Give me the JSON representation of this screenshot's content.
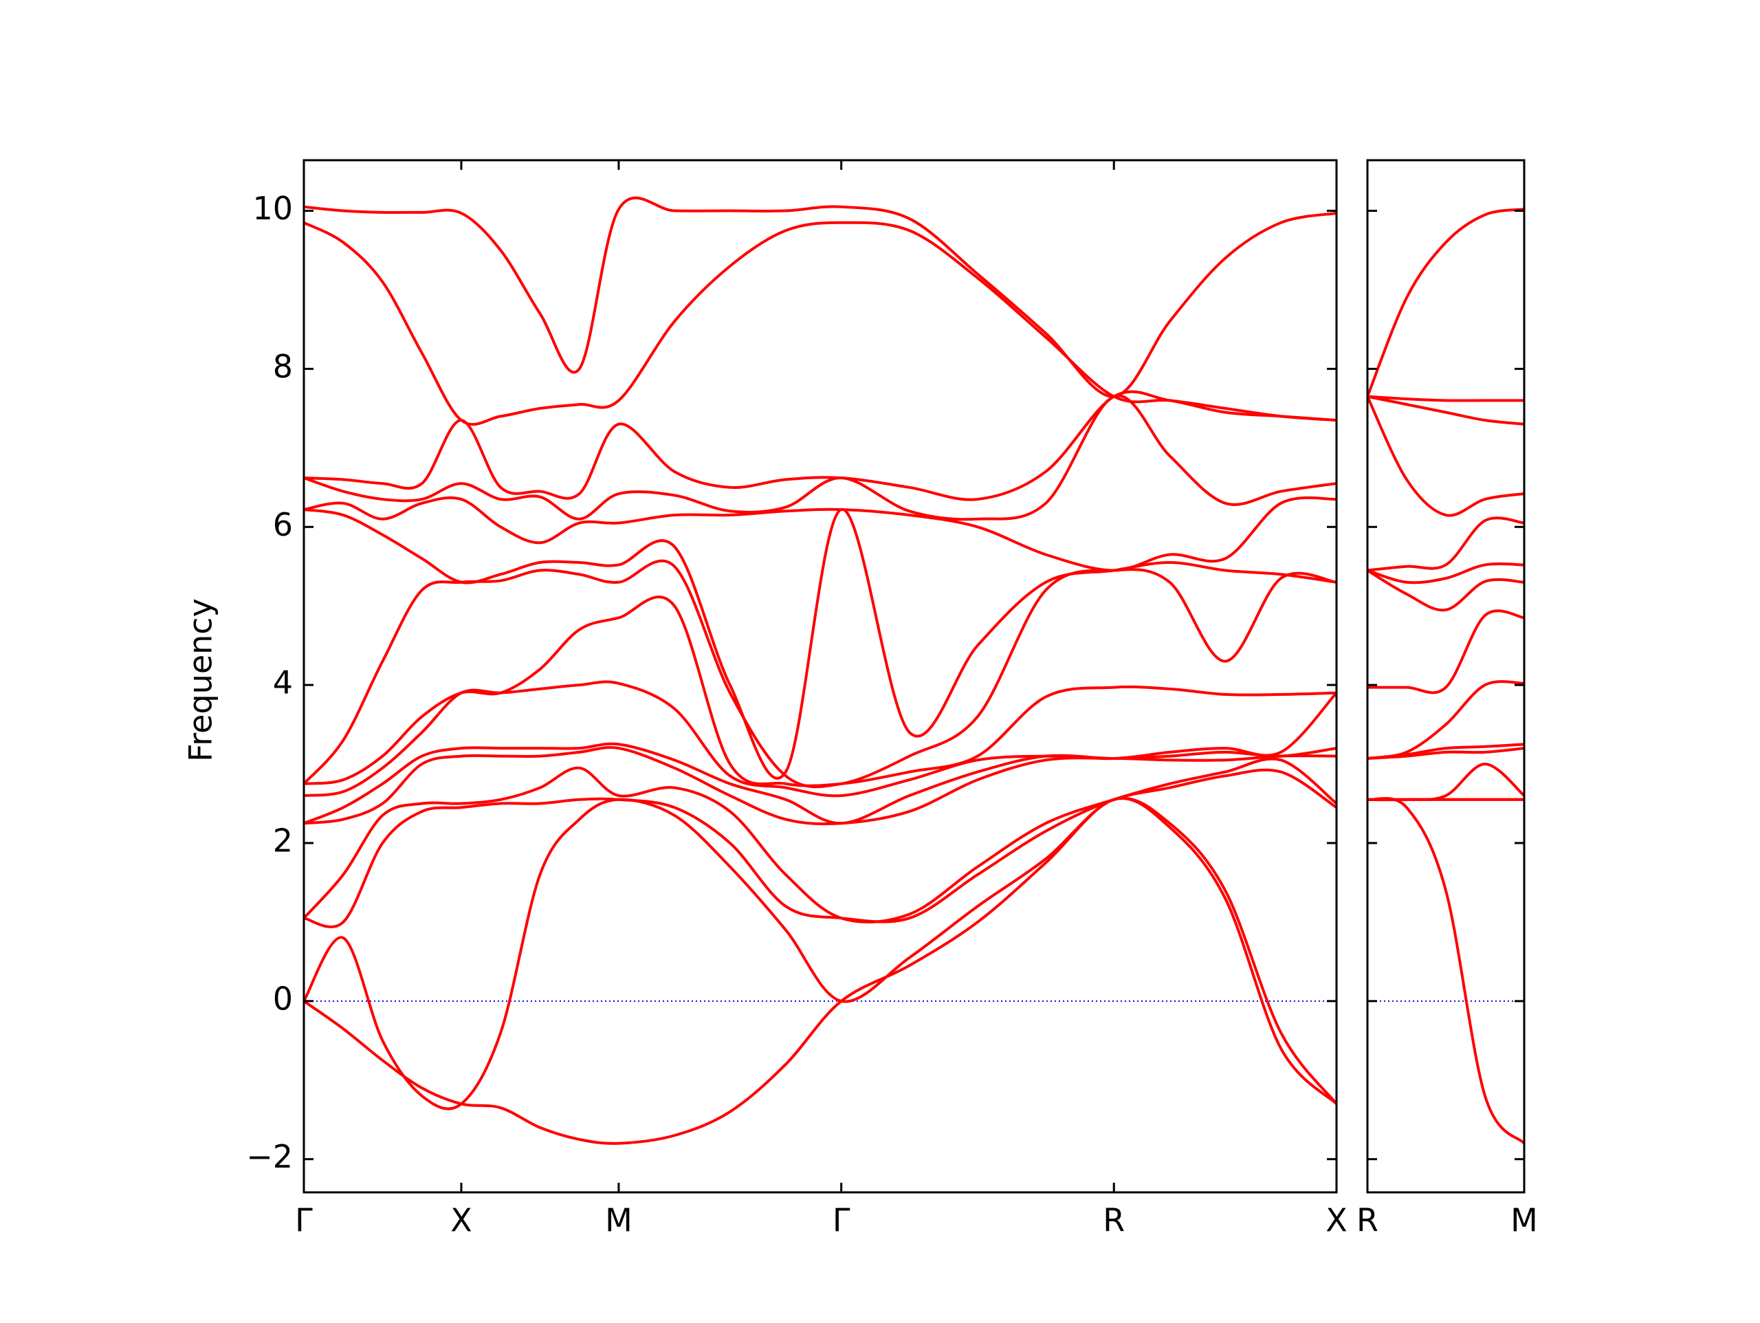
{
  "chart_data": [
    {
      "type": "line",
      "ylabel": "Frequency",
      "x": [
        0,
        0.25,
        0.5,
        0.75,
        1,
        1.25,
        1.5,
        1.75,
        2,
        2.354,
        2.707,
        3.061,
        3.414,
        3.847,
        4.28,
        4.713,
        5.146,
        5.5,
        5.853,
        6.207,
        6.56
      ],
      "xlim": [
        0,
        6.56
      ],
      "xticks": [
        {
          "value": 0,
          "label": "Γ"
        },
        {
          "value": 1,
          "label": "X"
        },
        {
          "value": 2,
          "label": "M"
        },
        {
          "value": 3.414,
          "label": "Γ"
        },
        {
          "value": 5.146,
          "label": "R"
        },
        {
          "value": 6.56,
          "label": "X"
        }
      ],
      "ylim": [
        -2.42,
        10.64
      ],
      "yticks": [
        {
          "value": -2,
          "label": "−2"
        },
        0,
        2,
        4,
        6,
        8,
        10
      ],
      "ytick_labels": true,
      "hline": {
        "value": 0,
        "color": "#0000ff"
      },
      "series": [
        {
          "color": "#ff0000",
          "values": [
            0,
            -0.35,
            -0.75,
            -1.1,
            -1.3,
            -1.35,
            -1.6,
            -1.75,
            -1.8,
            -1.7,
            -1.4,
            -0.8,
            0,
            0.45,
            1.0,
            1.75,
            2.55,
            2.2,
            1.3,
            -0.6,
            -1.3
          ]
        },
        {
          "color": "#ff0000",
          "values": [
            0,
            0.8,
            -0.5,
            -1.2,
            -1.3,
            -0.4,
            1.6,
            2.3,
            2.55,
            2.35,
            1.7,
            0.9,
            0,
            0.55,
            1.2,
            1.8,
            2.55,
            2.25,
            1.4,
            -0.4,
            -1.3
          ]
        },
        {
          "color": "#ff0000",
          "values": [
            1.05,
            1.0,
            2.0,
            2.4,
            2.45,
            2.5,
            2.5,
            2.55,
            2.55,
            2.45,
            2.0,
            1.2,
            1.05,
            1.05,
            1.6,
            2.15,
            2.55,
            2.7,
            2.85,
            2.9,
            2.45
          ]
        },
        {
          "color": "#ff0000",
          "values": [
            1.05,
            1.6,
            2.35,
            2.5,
            2.5,
            2.55,
            2.7,
            2.95,
            2.6,
            2.7,
            2.4,
            1.6,
            1.05,
            1.1,
            1.7,
            2.25,
            2.55,
            2.75,
            2.9,
            3.05,
            2.5
          ]
        },
        {
          "color": "#ff0000",
          "values": [
            2.25,
            2.3,
            2.5,
            3.0,
            3.1,
            3.1,
            3.1,
            3.15,
            3.2,
            2.95,
            2.6,
            2.3,
            2.25,
            2.4,
            2.8,
            3.05,
            3.07,
            3.05,
            3.05,
            3.1,
            3.1
          ]
        },
        {
          "color": "#ff0000",
          "values": [
            2.25,
            2.45,
            2.75,
            3.1,
            3.2,
            3.2,
            3.2,
            3.2,
            3.25,
            3.05,
            2.75,
            2.55,
            2.25,
            2.6,
            2.9,
            3.1,
            3.07,
            3.1,
            3.15,
            3.1,
            3.2
          ]
        },
        {
          "color": "#ff0000",
          "values": [
            2.6,
            2.65,
            2.95,
            3.4,
            3.9,
            3.9,
            3.95,
            4.0,
            4.02,
            3.7,
            2.85,
            2.7,
            2.6,
            2.8,
            3.05,
            3.1,
            3.07,
            3.15,
            3.2,
            3.15,
            3.9
          ]
        },
        {
          "color": "#ff0000",
          "values": [
            2.75,
            2.8,
            3.1,
            3.6,
            3.9,
            3.9,
            4.2,
            4.7,
            4.85,
            5.0,
            3.0,
            2.75,
            2.75,
            2.9,
            3.1,
            3.85,
            3.97,
            3.95,
            3.88,
            3.88,
            3.9
          ]
        },
        {
          "color": "#ff0000",
          "values": [
            2.75,
            3.3,
            4.3,
            5.2,
            5.3,
            5.32,
            5.45,
            5.4,
            5.3,
            5.5,
            3.9,
            2.85,
            2.75,
            3.1,
            3.6,
            5.2,
            5.45,
            5.3,
            4.3,
            5.35,
            5.3
          ]
        },
        {
          "color": "#ff0000",
          "values": [
            6.22,
            6.15,
            5.9,
            5.6,
            5.3,
            5.4,
            5.55,
            5.55,
            5.52,
            5.75,
            4.0,
            2.9,
            6.22,
            3.4,
            4.5,
            5.3,
            5.45,
            5.55,
            5.45,
            5.4,
            5.3
          ]
        },
        {
          "color": "#ff0000",
          "values": [
            6.22,
            6.3,
            6.1,
            6.3,
            6.35,
            6.0,
            5.8,
            6.05,
            6.05,
            6.15,
            6.15,
            6.2,
            6.22,
            6.15,
            6.0,
            5.65,
            5.45,
            5.65,
            5.6,
            6.3,
            6.35
          ]
        },
        {
          "color": "#ff0000",
          "values": [
            6.62,
            6.45,
            6.35,
            6.35,
            6.55,
            6.35,
            6.38,
            6.1,
            6.42,
            6.4,
            6.2,
            6.25,
            6.62,
            6.2,
            6.1,
            6.3,
            7.65,
            6.9,
            6.3,
            6.45,
            6.55
          ]
        },
        {
          "color": "#ff0000",
          "values": [
            6.62,
            6.6,
            6.55,
            6.55,
            7.35,
            6.5,
            6.45,
            6.42,
            7.3,
            6.7,
            6.5,
            6.6,
            6.62,
            6.5,
            6.35,
            6.7,
            7.65,
            7.6,
            7.45,
            7.4,
            7.35
          ]
        },
        {
          "color": "#ff0000",
          "values": [
            9.85,
            9.6,
            9.1,
            8.2,
            7.35,
            7.4,
            7.5,
            7.55,
            7.6,
            8.6,
            9.3,
            9.75,
            9.85,
            9.75,
            9.15,
            8.4,
            7.65,
            7.6,
            7.5,
            7.4,
            7.35
          ]
        },
        {
          "color": "#ff0000",
          "values": [
            10.05,
            10.0,
            9.98,
            9.98,
            9.97,
            9.5,
            8.7,
            8.0,
            10.02,
            10.0,
            10.0,
            10.0,
            10.05,
            9.9,
            9.2,
            8.45,
            7.65,
            8.6,
            9.4,
            9.85,
            9.97
          ]
        }
      ]
    },
    {
      "type": "line",
      "x": [
        0,
        0.25,
        0.5,
        0.75,
        1
      ],
      "xlim": [
        0,
        1
      ],
      "xticks": [
        {
          "value": 0,
          "label": "R"
        },
        {
          "value": 1,
          "label": "M"
        }
      ],
      "ylim": [
        -2.42,
        10.64
      ],
      "yticks": [
        -2,
        0,
        2,
        4,
        6,
        8,
        10
      ],
      "ytick_labels": false,
      "hline": {
        "value": 0,
        "color": "#0000ff"
      },
      "series": [
        {
          "color": "#ff0000",
          "values": [
            2.55,
            2.45,
            1.4,
            -1.2,
            -1.8
          ]
        },
        {
          "color": "#ff0000",
          "values": [
            2.55,
            2.55,
            2.55,
            2.55,
            2.55
          ]
        },
        {
          "color": "#ff0000",
          "values": [
            2.55,
            2.55,
            2.55,
            2.55,
            2.55
          ]
        },
        {
          "color": "#ff0000",
          "values": [
            2.55,
            2.55,
            2.6,
            3.0,
            2.6
          ]
        },
        {
          "color": "#ff0000",
          "values": [
            3.07,
            3.1,
            3.15,
            3.15,
            3.2
          ]
        },
        {
          "color": "#ff0000",
          "values": [
            3.07,
            3.12,
            3.2,
            3.22,
            3.25
          ]
        },
        {
          "color": "#ff0000",
          "values": [
            3.07,
            3.15,
            3.5,
            4.0,
            4.02
          ]
        },
        {
          "color": "#ff0000",
          "values": [
            3.97,
            3.97,
            3.97,
            4.88,
            4.85
          ]
        },
        {
          "color": "#ff0000",
          "values": [
            5.45,
            5.15,
            4.95,
            5.31,
            5.3
          ]
        },
        {
          "color": "#ff0000",
          "values": [
            5.45,
            5.3,
            5.35,
            5.52,
            5.52
          ]
        },
        {
          "color": "#ff0000",
          "values": [
            5.45,
            5.5,
            5.52,
            6.08,
            6.05
          ]
        },
        {
          "color": "#ff0000",
          "values": [
            7.65,
            6.6,
            6.15,
            6.35,
            6.42
          ]
        },
        {
          "color": "#ff0000",
          "values": [
            7.65,
            7.55,
            7.45,
            7.35,
            7.3
          ]
        },
        {
          "color": "#ff0000",
          "values": [
            7.65,
            7.62,
            7.6,
            7.6,
            7.6
          ]
        },
        {
          "color": "#ff0000",
          "values": [
            7.65,
            8.9,
            9.6,
            9.95,
            10.02
          ]
        }
      ]
    }
  ]
}
